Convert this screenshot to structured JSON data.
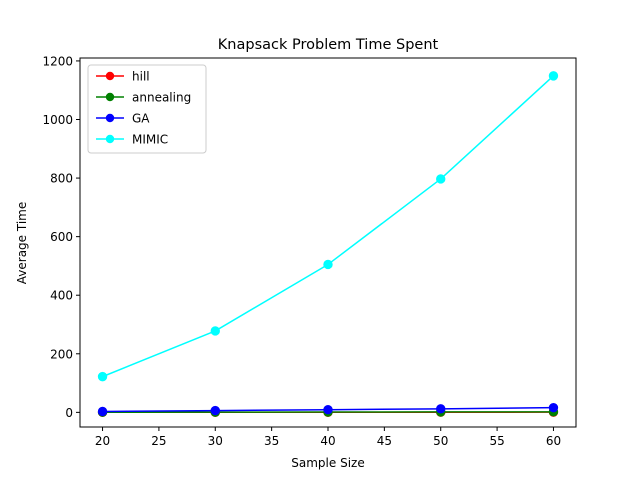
{
  "chart_data": {
    "type": "line",
    "title": "Knapsack Problem Time Spent",
    "xlabel": "Sample Size",
    "ylabel": "Average Time",
    "xlim": [
      18,
      62
    ],
    "ylim": [
      -50,
      1210
    ],
    "xticks": [
      20,
      25,
      30,
      35,
      40,
      45,
      50,
      55,
      60
    ],
    "yticks": [
      0,
      200,
      400,
      600,
      800,
      1000,
      1200
    ],
    "grid": false,
    "legend_position": "upper-left",
    "x": [
      20,
      30,
      40,
      50,
      60
    ],
    "series": [
      {
        "name": "hill",
        "color": "#ff0000",
        "values": [
          0.2,
          0.3,
          0.4,
          0.5,
          0.6
        ]
      },
      {
        "name": "annealing",
        "color": "#008000",
        "values": [
          0.5,
          0.8,
          1.2,
          1.5,
          1.8
        ]
      },
      {
        "name": "GA",
        "color": "#0000ff",
        "values": [
          3,
          6,
          9,
          12,
          16
        ]
      },
      {
        "name": "MIMIC",
        "color": "#00ffff",
        "values": [
          122,
          278,
          505,
          797,
          1149
        ]
      }
    ]
  }
}
